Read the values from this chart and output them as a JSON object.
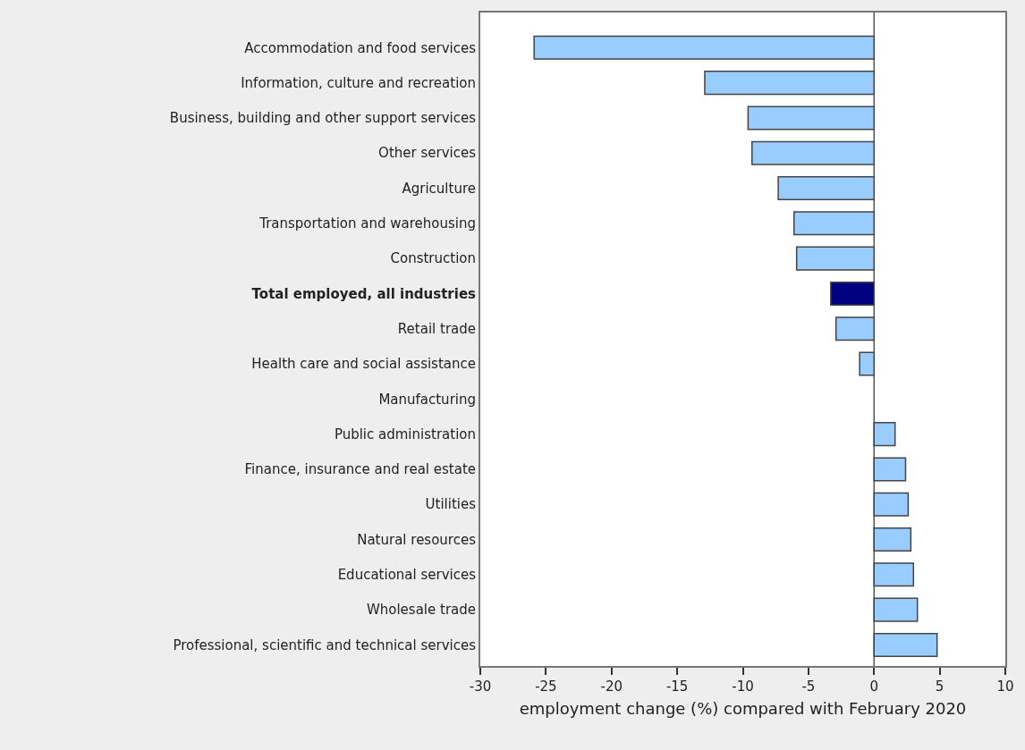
{
  "chart_data": {
    "type": "bar",
    "orientation": "horizontal",
    "xlabel": "employment change (%) compared with February 2020",
    "categories": [
      "Accommodation and food services",
      "Information, culture and recreation",
      "Business, building and other support services",
      "Other services",
      "Agriculture",
      "Transportation and warehousing",
      "Construction",
      "Total employed, all industries",
      "Retail trade",
      "Health care and social assistance",
      "Manufacturing",
      "Public administration",
      "Finance, insurance and real estate",
      "Utilities",
      "Natural resources",
      "Educational services",
      "Wholesale trade",
      "Professional, scientific and technical services"
    ],
    "values": [
      -25.9,
      -12.9,
      -9.6,
      -9.3,
      -7.3,
      -6.1,
      -5.9,
      -3.3,
      -2.9,
      -1.1,
      null,
      1.6,
      2.4,
      2.6,
      2.8,
      3.0,
      3.3,
      4.8
    ],
    "colors": [
      "#99ccff",
      "#99ccff",
      "#99ccff",
      "#99ccff",
      "#99ccff",
      "#99ccff",
      "#99ccff",
      "#000080",
      "#99ccff",
      "#99ccff",
      "#99ccff",
      "#99ccff",
      "#99ccff",
      "#99ccff",
      "#99ccff",
      "#99ccff",
      "#99ccff",
      "#99ccff"
    ],
    "xlim": [
      -30,
      10
    ],
    "xticks": [
      -30,
      -25,
      -20,
      -15,
      -10,
      -5,
      0,
      5,
      10
    ],
    "grid": false,
    "ref_lines": [
      {
        "axis": "x",
        "value": 0,
        "color": "#555555"
      }
    ]
  }
}
